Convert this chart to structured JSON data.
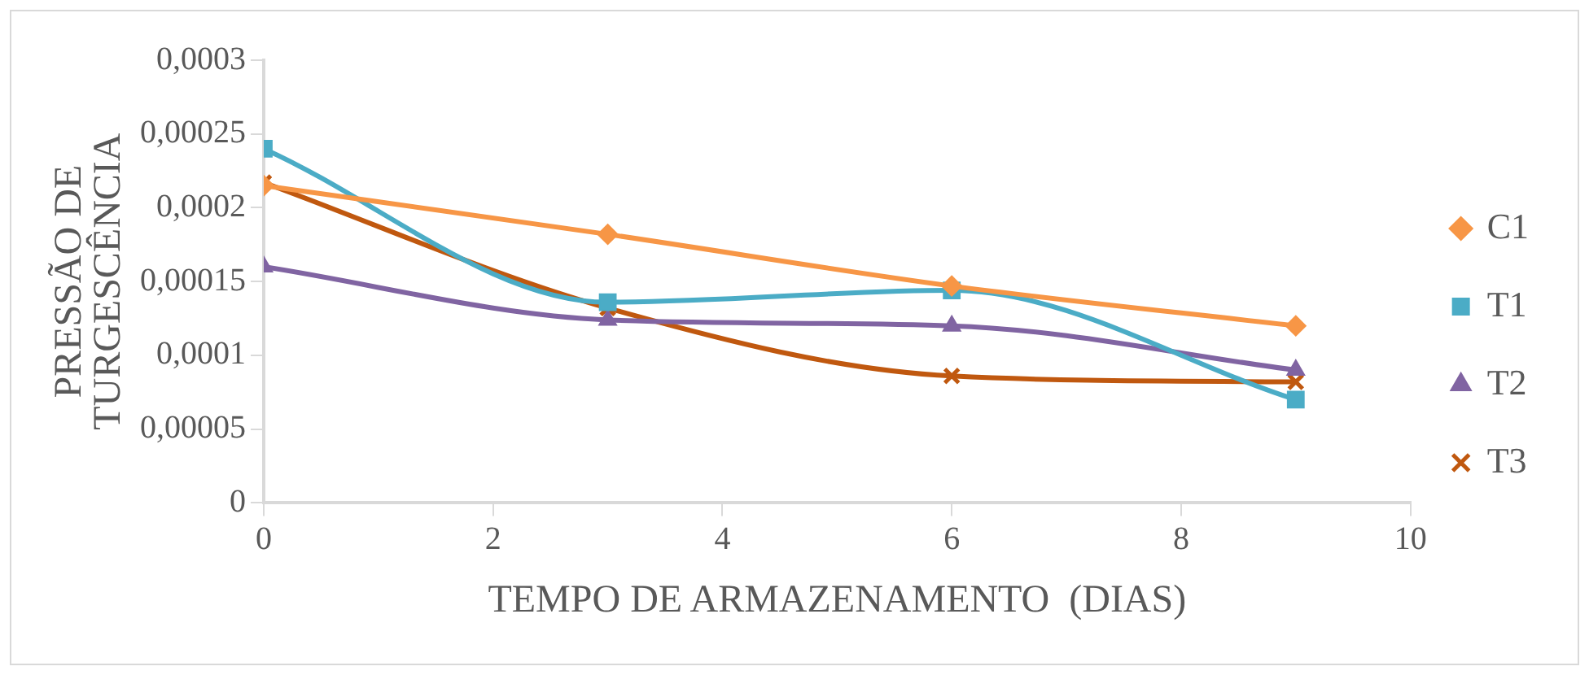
{
  "chart_data": {
    "type": "line",
    "xlabel": "TEMPO DE ARMAZENAMENTO  (DIAS)",
    "ylabel": "PRESSÃO DE TURGESCÊNCIA",
    "x": [
      0,
      3,
      6,
      9
    ],
    "series": [
      {
        "name": "C1",
        "color": "#f79646",
        "marker": "diamond",
        "values": [
          0.000215,
          0.000182,
          0.000147,
          0.00012
        ]
      },
      {
        "name": "T1",
        "color": "#4bacc6",
        "marker": "square",
        "values": [
          0.00024,
          0.000136,
          0.000144,
          7e-05
        ]
      },
      {
        "name": "T2",
        "color": "#8064a2",
        "marker": "triangle",
        "values": [
          0.00016,
          0.000124,
          0.00012,
          9e-05
        ]
      },
      {
        "name": "T3",
        "color": "#c0580f",
        "marker": "cross",
        "values": [
          0.000217,
          0.000132,
          8.6e-05,
          8.2e-05
        ]
      }
    ],
    "xlim": [
      0,
      10
    ],
    "xticks": [
      0,
      2,
      4,
      6,
      8,
      10
    ],
    "ylim": [
      0,
      0.0003
    ],
    "yticks": [
      0,
      {
        "value": 5e-05,
        "label": "0,00005"
      },
      {
        "value": 0.0001,
        "label": "0,0001"
      },
      {
        "value": 0.00015,
        "label": "0,00015"
      },
      {
        "value": 0.0002,
        "label": "0,0002"
      },
      {
        "value": 0.00025,
        "label": "0,00025"
      },
      {
        "value": 0.0003,
        "label": "0,0003"
      }
    ],
    "grid": false,
    "legend": "right",
    "line_style": "solid"
  }
}
